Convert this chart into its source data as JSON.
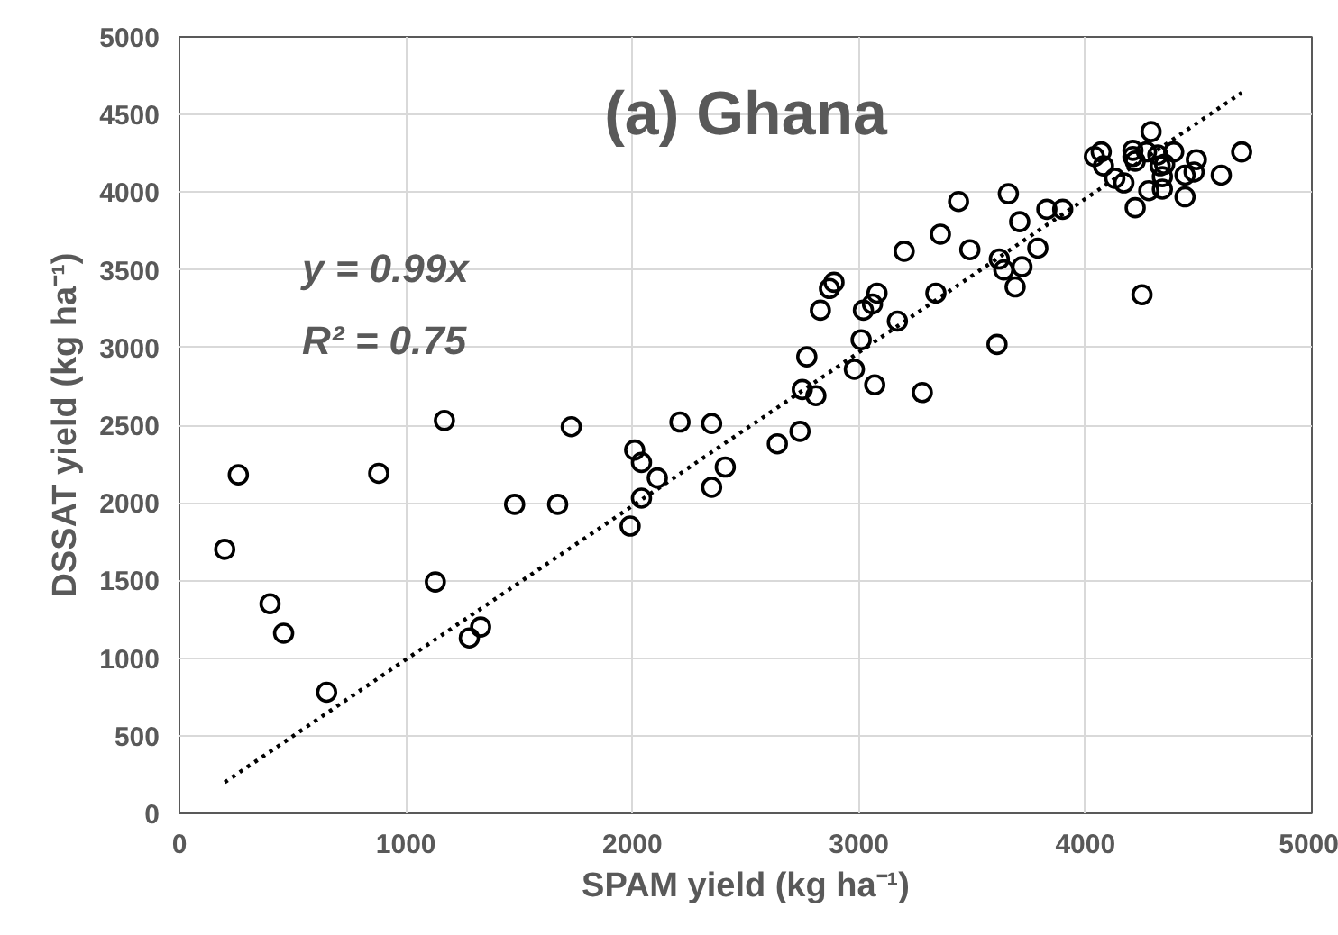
{
  "chart_data": {
    "type": "scatter",
    "title": "(a) Ghana",
    "xlabel": "SPAM yield (kg ha⁻¹)",
    "ylabel": "DSSAT yield (kg ha⁻¹)",
    "annotations": [
      "y = 0.99x",
      "R² = 0.75"
    ],
    "xlim": [
      0,
      5000
    ],
    "ylim": [
      0,
      5000
    ],
    "xticks": [
      0,
      1000,
      2000,
      3000,
      4000,
      5000
    ],
    "yticks": [
      0,
      500,
      1000,
      1500,
      2000,
      2500,
      3000,
      3500,
      4000,
      4500,
      5000
    ],
    "grid": true,
    "series": [
      {
        "color": "#000000",
        "marker": "circle",
        "x": [
          200,
          260,
          400,
          460,
          650,
          880,
          1130,
          1170,
          1280,
          1330,
          1480,
          1670,
          1730,
          1990,
          2010,
          2040,
          2040,
          2110,
          2210,
          2350,
          2350,
          2410,
          2640,
          2740,
          2750,
          2770,
          2810,
          2830,
          2870,
          2890,
          2980,
          3010,
          3020,
          3060,
          3080,
          3070,
          3170,
          3200,
          3280,
          3340,
          3360,
          3440,
          3490,
          3610,
          3620,
          3640,
          3660,
          3690,
          3710,
          3720,
          3790,
          3830,
          3900,
          4040,
          4070,
          4080,
          4130,
          4170,
          4210,
          4210,
          4220,
          4220,
          4250,
          4270,
          4280,
          4290,
          4320,
          4330,
          4340,
          4340,
          4350,
          4390,
          4440,
          4440,
          4480,
          4490,
          4600,
          4690
        ],
        "values": [
          1700,
          2180,
          1350,
          1160,
          780,
          2190,
          1490,
          2530,
          1130,
          1200,
          1990,
          1990,
          2490,
          1850,
          2340,
          2030,
          2260,
          2160,
          2520,
          2100,
          2510,
          2230,
          2380,
          2460,
          2730,
          2940,
          2690,
          3240,
          3380,
          3420,
          2860,
          3050,
          3240,
          3280,
          3350,
          2760,
          3170,
          3620,
          2710,
          3350,
          3730,
          3940,
          3630,
          3020,
          3570,
          3500,
          3990,
          3390,
          3810,
          3520,
          3640,
          3890,
          3890,
          4230,
          4260,
          4170,
          4090,
          4060,
          4270,
          4230,
          4200,
          3900,
          3340,
          4260,
          4010,
          4390,
          4240,
          4170,
          4100,
          4020,
          4180,
          4260,
          3970,
          4110,
          4130,
          4210,
          4110,
          4260
        ]
      },
      {
        "type": "line",
        "color": "#000000",
        "line_style": "dotted",
        "x": [
          200,
          4690
        ],
        "values": [
          200,
          4640
        ]
      }
    ]
  }
}
